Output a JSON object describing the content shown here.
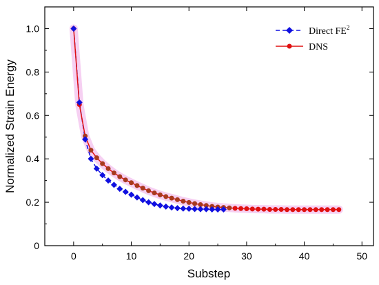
{
  "chart_data": {
    "type": "line",
    "xlabel": "Substep",
    "ylabel": "Normalized Strain Energy",
    "xlim": [
      -5,
      52
    ],
    "ylim": [
      0,
      1.1
    ],
    "xticks": [
      0,
      10,
      20,
      30,
      40,
      50
    ],
    "yticks": [
      0,
      0.2,
      0.4,
      0.6,
      0.8,
      1.0
    ],
    "ytick_labels": [
      "0",
      "0.2",
      "0.4",
      "0.6",
      "0.8",
      "1.0"
    ],
    "grid": false,
    "legend_placement": "top-right",
    "legend_superscript": "2",
    "series": [
      {
        "name": "Direct FE",
        "color": "#1010e0",
        "marker": "diamond",
        "line": "dashed",
        "x": [
          0,
          1,
          2,
          3,
          4,
          5,
          6,
          7,
          8,
          9,
          10,
          11,
          12,
          13,
          14,
          15,
          16,
          17,
          18,
          19,
          20,
          21,
          22,
          23,
          24,
          25,
          26
        ],
        "y": [
          1.0,
          0.66,
          0.49,
          0.4,
          0.355,
          0.325,
          0.3,
          0.28,
          0.262,
          0.248,
          0.235,
          0.222,
          0.21,
          0.2,
          0.192,
          0.185,
          0.18,
          0.176,
          0.173,
          0.171,
          0.17,
          0.169,
          0.168,
          0.168,
          0.167,
          0.167,
          0.167
        ]
      },
      {
        "name": "DNS",
        "color": "#e01010",
        "marker": "circle",
        "line": "solid",
        "x": [
          0,
          1,
          2,
          3,
          4,
          5,
          6,
          7,
          8,
          9,
          10,
          11,
          12,
          13,
          14,
          15,
          16,
          17,
          18,
          19,
          20,
          21,
          22,
          23,
          24,
          25,
          26,
          27,
          28,
          29,
          30,
          31,
          32,
          33,
          34,
          35,
          36,
          37,
          38,
          39,
          40,
          41,
          42,
          43,
          44,
          45,
          46
        ],
        "y": [
          1.0,
          0.65,
          0.505,
          0.44,
          0.405,
          0.378,
          0.355,
          0.335,
          0.318,
          0.303,
          0.29,
          0.277,
          0.265,
          0.253,
          0.243,
          0.234,
          0.226,
          0.219,
          0.212,
          0.205,
          0.199,
          0.194,
          0.189,
          0.185,
          0.181,
          0.178,
          0.176,
          0.174,
          0.172,
          0.171,
          0.17,
          0.169,
          0.168,
          0.168,
          0.167,
          0.167,
          0.167,
          0.166,
          0.166,
          0.166,
          0.166,
          0.166,
          0.166,
          0.166,
          0.166,
          0.166,
          0.166
        ]
      }
    ]
  }
}
